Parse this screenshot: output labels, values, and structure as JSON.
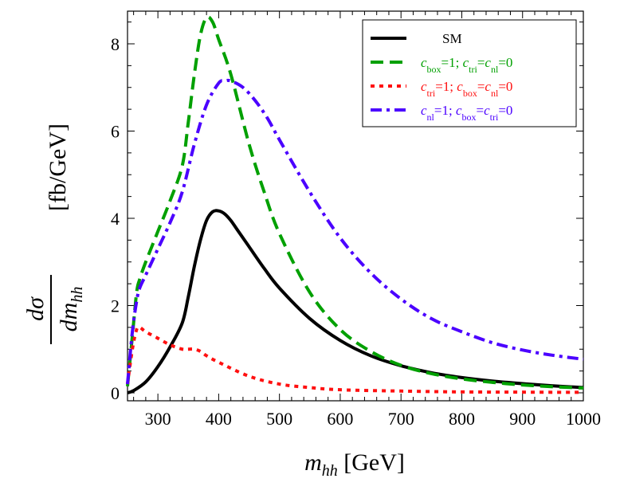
{
  "chart_data": {
    "type": "line",
    "xlabel": {
      "var": "m",
      "sub": "hh",
      "unit": "[GeV]"
    },
    "ylabel": {
      "num": "dσ",
      "den_var": "dm",
      "den_sub": "hh",
      "unit": "[fb/GeV]"
    },
    "xlim": [
      250,
      1000
    ],
    "ylim": [
      0,
      8.8
    ],
    "xticks": [
      300,
      400,
      500,
      600,
      700,
      800,
      900,
      1000
    ],
    "yticks": [
      0,
      2,
      4,
      6,
      8
    ],
    "grid": false,
    "legend_position": "top-right",
    "series": [
      {
        "name": "SM",
        "color": "#000000",
        "dash": "solid",
        "x": [
          250,
          260,
          280,
          300,
          320,
          340,
          350,
          360,
          370,
          380,
          390,
          400,
          410,
          420,
          430,
          450,
          475,
          500,
          550,
          600,
          650,
          700,
          750,
          800,
          850,
          900,
          950,
          1000
        ],
        "y": [
          0.0,
          0.05,
          0.25,
          0.6,
          1.05,
          1.6,
          2.2,
          2.9,
          3.5,
          3.95,
          4.15,
          4.17,
          4.1,
          3.95,
          3.75,
          3.35,
          2.85,
          2.4,
          1.7,
          1.2,
          0.85,
          0.62,
          0.46,
          0.35,
          0.27,
          0.21,
          0.16,
          0.12
        ]
      },
      {
        "name": "c_box=1; c_tri=c_nl=0",
        "color": "#00a000",
        "dash": "dash",
        "x": [
          250,
          258,
          265,
          270,
          280,
          300,
          320,
          340,
          350,
          360,
          370,
          380,
          390,
          400,
          420,
          450,
          475,
          500,
          550,
          600,
          650,
          700,
          750,
          800,
          850,
          900,
          950,
          1000
        ],
        "y": [
          0.15,
          1.3,
          2.3,
          2.6,
          3.0,
          3.7,
          4.4,
          5.2,
          6.2,
          7.3,
          8.2,
          8.6,
          8.5,
          8.1,
          7.3,
          5.7,
          4.6,
          3.65,
          2.3,
          1.45,
          0.95,
          0.63,
          0.44,
          0.32,
          0.24,
          0.18,
          0.14,
          0.11
        ]
      },
      {
        "name": "c_tri=1; c_box=c_nl=0",
        "color": "#ff1010",
        "dash": "dot",
        "x": [
          250,
          258,
          265,
          270,
          280,
          300,
          320,
          340,
          350,
          360,
          370,
          380,
          400,
          450,
          500,
          550,
          600,
          700,
          800,
          900,
          1000
        ],
        "y": [
          0.2,
          1.0,
          1.45,
          1.5,
          1.4,
          1.25,
          1.1,
          1.0,
          1.0,
          1.0,
          0.95,
          0.85,
          0.7,
          0.38,
          0.2,
          0.12,
          0.07,
          0.04,
          0.02,
          0.015,
          0.01
        ]
      },
      {
        "name": "c_nl=1; c_box=c_tri=0",
        "color": "#4b00ff",
        "dash": "dashdot",
        "x": [
          250,
          258,
          265,
          270,
          280,
          300,
          320,
          340,
          360,
          380,
          400,
          410,
          420,
          440,
          460,
          480,
          500,
          550,
          600,
          650,
          700,
          750,
          800,
          850,
          900,
          950,
          1000
        ],
        "y": [
          0.2,
          1.4,
          2.1,
          2.4,
          2.7,
          3.3,
          3.9,
          4.6,
          5.7,
          6.6,
          7.1,
          7.15,
          7.15,
          7.0,
          6.7,
          6.3,
          5.8,
          4.6,
          3.55,
          2.75,
          2.15,
          1.7,
          1.4,
          1.15,
          0.98,
          0.86,
          0.77
        ]
      }
    ],
    "legend": [
      {
        "parts": [
          [
            "SM",
            ""
          ]
        ],
        "color": "#000000",
        "dash": "solid"
      },
      {
        "parts": [
          [
            "c",
            "box"
          ],
          [
            "=1; ",
            ""
          ],
          [
            "c",
            "tri"
          ],
          [
            "=",
            ""
          ],
          [
            "c",
            "nl"
          ],
          [
            "=0",
            ""
          ]
        ],
        "color": "#00a000",
        "dash": "dash"
      },
      {
        "parts": [
          [
            "c",
            "tri"
          ],
          [
            "=1; ",
            ""
          ],
          [
            "c",
            "box"
          ],
          [
            "=",
            ""
          ],
          [
            "c",
            "nl"
          ],
          [
            "=0",
            ""
          ]
        ],
        "color": "#ff1010",
        "dash": "dot"
      },
      {
        "parts": [
          [
            "c",
            "nl"
          ],
          [
            "=1; ",
            ""
          ],
          [
            "c",
            "box"
          ],
          [
            "=",
            ""
          ],
          [
            "c",
            "tri"
          ],
          [
            "=0",
            ""
          ]
        ],
        "color": "#4b00ff",
        "dash": "dashdot"
      }
    ]
  }
}
